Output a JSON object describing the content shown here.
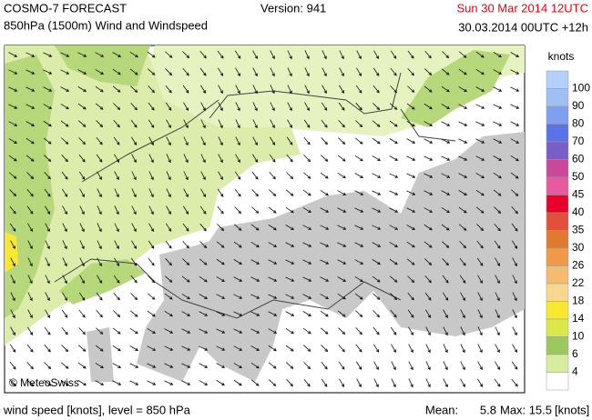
{
  "header": {
    "title": "COSMO-7 FORECAST",
    "subtitle": "850hPa (1500m) Wind and Windspeed",
    "version": "Version: 941",
    "valid_time": "Sun 30 Mar 2014 12UTC",
    "run_time": "30.03.2014 00UTC +12h"
  },
  "map": {
    "credit": "© MeteoSwiss"
  },
  "legend": {
    "title": "knots",
    "levels": [
      100,
      90,
      80,
      70,
      60,
      50,
      45,
      40,
      35,
      30,
      26,
      22,
      18,
      14,
      10,
      6,
      4
    ],
    "colors": [
      "#b4d0fa",
      "#a0c0f4",
      "#7f9ff0",
      "#5a72e6",
      "#7a5ec8",
      "#c9489a",
      "#e65aa0",
      "#e8002a",
      "#e0503a",
      "#e07a30",
      "#f09a48",
      "#f4bc70",
      "#f8d890",
      "#f8e830",
      "#dce84a",
      "#9cc860",
      "#d8eca0",
      "#ffffff"
    ]
  },
  "footer": {
    "level_text": "wind speed [knots], level = 850 hPa",
    "mean_label": "Mean:",
    "mean": 5.8,
    "max_label": "Max:",
    "max": 15.5,
    "unit": "[knots]"
  }
}
